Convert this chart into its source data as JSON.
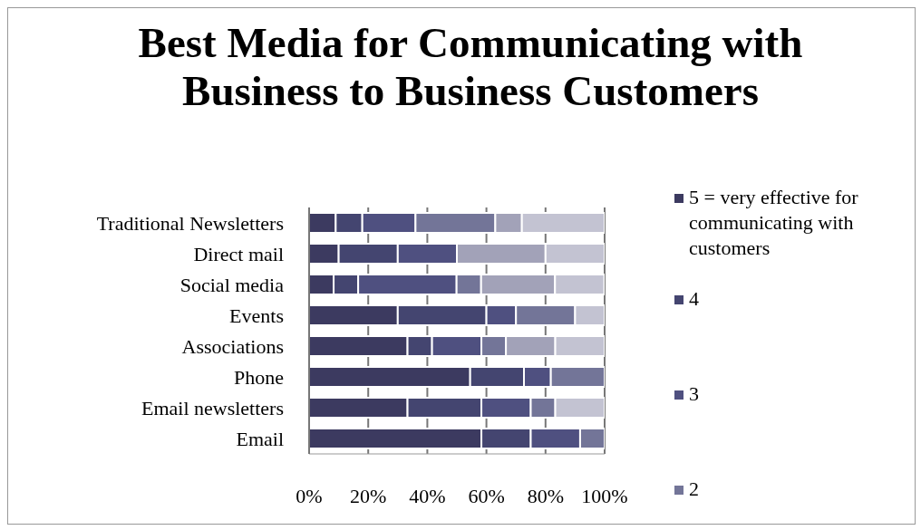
{
  "chart_data": {
    "type": "bar",
    "orientation": "horizontal",
    "stacked": true,
    "title": "Best Media for Communicating with Business to Business Customers",
    "categories": [
      "Traditional Newsletters",
      "Direct mail",
      "Social media",
      "Events",
      "Associations",
      "Phone",
      "Email newsletters",
      "Email"
    ],
    "series": [
      {
        "name": "5 = very effective for communicating with customers",
        "color": "#3c3a60",
        "values": [
          9,
          10,
          8.3,
          30,
          33.3,
          54.5,
          33.3,
          58.3
        ]
      },
      {
        "name": "4",
        "color": "#444570",
        "values": [
          9,
          20,
          8.3,
          30,
          8.3,
          18.2,
          25,
          16.7
        ]
      },
      {
        "name": "3",
        "color": "#4f5080",
        "values": [
          18,
          20,
          33.3,
          10,
          16.7,
          9.1,
          16.7,
          16.7
        ]
      },
      {
        "name": "2",
        "color": "#737598",
        "values": [
          27,
          0,
          8.3,
          20,
          8.3,
          18.2,
          8.3,
          8.3
        ]
      },
      {
        "color": "#a2a2b8",
        "values": [
          9,
          30,
          25,
          0,
          16.7,
          0,
          0,
          0
        ]
      },
      {
        "color": "#c3c3d2",
        "values": [
          28,
          20,
          16.7,
          10,
          16.7,
          0,
          16.7,
          0
        ]
      }
    ],
    "xlim": [
      0,
      100
    ],
    "xticks": [
      {
        "value": 0,
        "label": "0%"
      },
      {
        "value": 20,
        "label": "20%"
      },
      {
        "value": 40,
        "label": "40%"
      },
      {
        "value": 60,
        "label": "60%"
      },
      {
        "value": 80,
        "label": "80%"
      },
      {
        "value": 100,
        "label": "100%"
      }
    ],
    "grid": "x",
    "legend": "right"
  }
}
